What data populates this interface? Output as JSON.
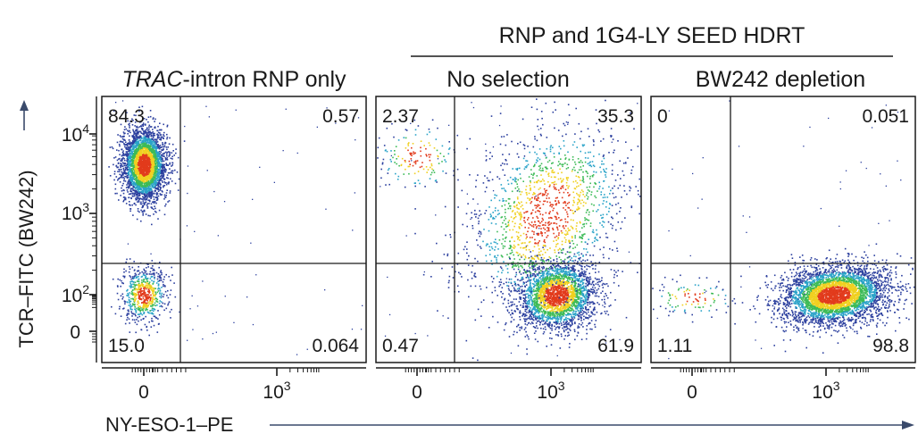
{
  "figure": {
    "group_header": "RNP and 1G4-LY SEED HDRT",
    "x_axis_label": "NY-ESO-1–PE",
    "y_axis_label": "TCR–FITC (BW242)",
    "colors": {
      "density_low": "#2b3f9e",
      "density_mid_low": "#2aa3c8",
      "density_mid": "#3dbb57",
      "density_mid_high": "#f0d020",
      "density_high": "#e23b1c",
      "axis": "#1a1a1a",
      "arrow": "#3a4a6b"
    }
  },
  "chart_data": [
    {
      "type": "scatter",
      "subtype": "flow-cytometry-density",
      "title_italic": "TRAC",
      "title_rest": "-intron RNP only",
      "x_scale": "biexponential",
      "y_scale": "biexponential",
      "x_ticks": [
        {
          "label": "0",
          "value": 0
        },
        {
          "label": "10",
          "sup": "3",
          "value": 1000
        }
      ],
      "y_ticks": [
        {
          "label": "0",
          "value": 0
        },
        {
          "label": "10",
          "sup": "2",
          "value": 100
        },
        {
          "label": "10",
          "sup": "3",
          "value": 1000
        },
        {
          "label": "10",
          "sup": "4",
          "value": 10000
        }
      ],
      "quadrants": {
        "upper_left": "84.3",
        "upper_right": "0.57",
        "lower_left": "15.0",
        "lower_right": "0.064"
      },
      "populations": [
        {
          "x": 0,
          "y": 4000,
          "share": 84.3
        },
        {
          "x": 0,
          "y": 100,
          "share": 15.0
        }
      ]
    },
    {
      "type": "scatter",
      "subtype": "flow-cytometry-density",
      "title": "No selection",
      "x_scale": "biexponential",
      "y_scale": "biexponential",
      "x_ticks": [
        {
          "label": "0",
          "value": 0
        },
        {
          "label": "10",
          "sup": "3",
          "value": 1000
        }
      ],
      "quadrants": {
        "upper_left": "2.37",
        "upper_right": "35.3",
        "lower_left": "0.47",
        "lower_right": "61.9"
      },
      "populations": [
        {
          "x": 1300,
          "y": 100,
          "share": 61.9
        },
        {
          "x": 800,
          "y": 1000,
          "share": 35.3
        },
        {
          "x": 0,
          "y": 5000,
          "share": 2.37
        }
      ]
    },
    {
      "type": "scatter",
      "subtype": "flow-cytometry-density",
      "title": "BW242 depletion",
      "x_scale": "biexponential",
      "y_scale": "biexponential",
      "x_ticks": [
        {
          "label": "0",
          "value": 0
        },
        {
          "label": "10",
          "sup": "3",
          "value": 1000
        }
      ],
      "quadrants": {
        "upper_left": "0",
        "upper_right": "0.051",
        "lower_left": "1.11",
        "lower_right": "98.8"
      },
      "populations": [
        {
          "x": 1500,
          "y": 100,
          "share": 98.8
        },
        {
          "x": 0,
          "y": 70,
          "share": 1.11
        }
      ]
    }
  ]
}
